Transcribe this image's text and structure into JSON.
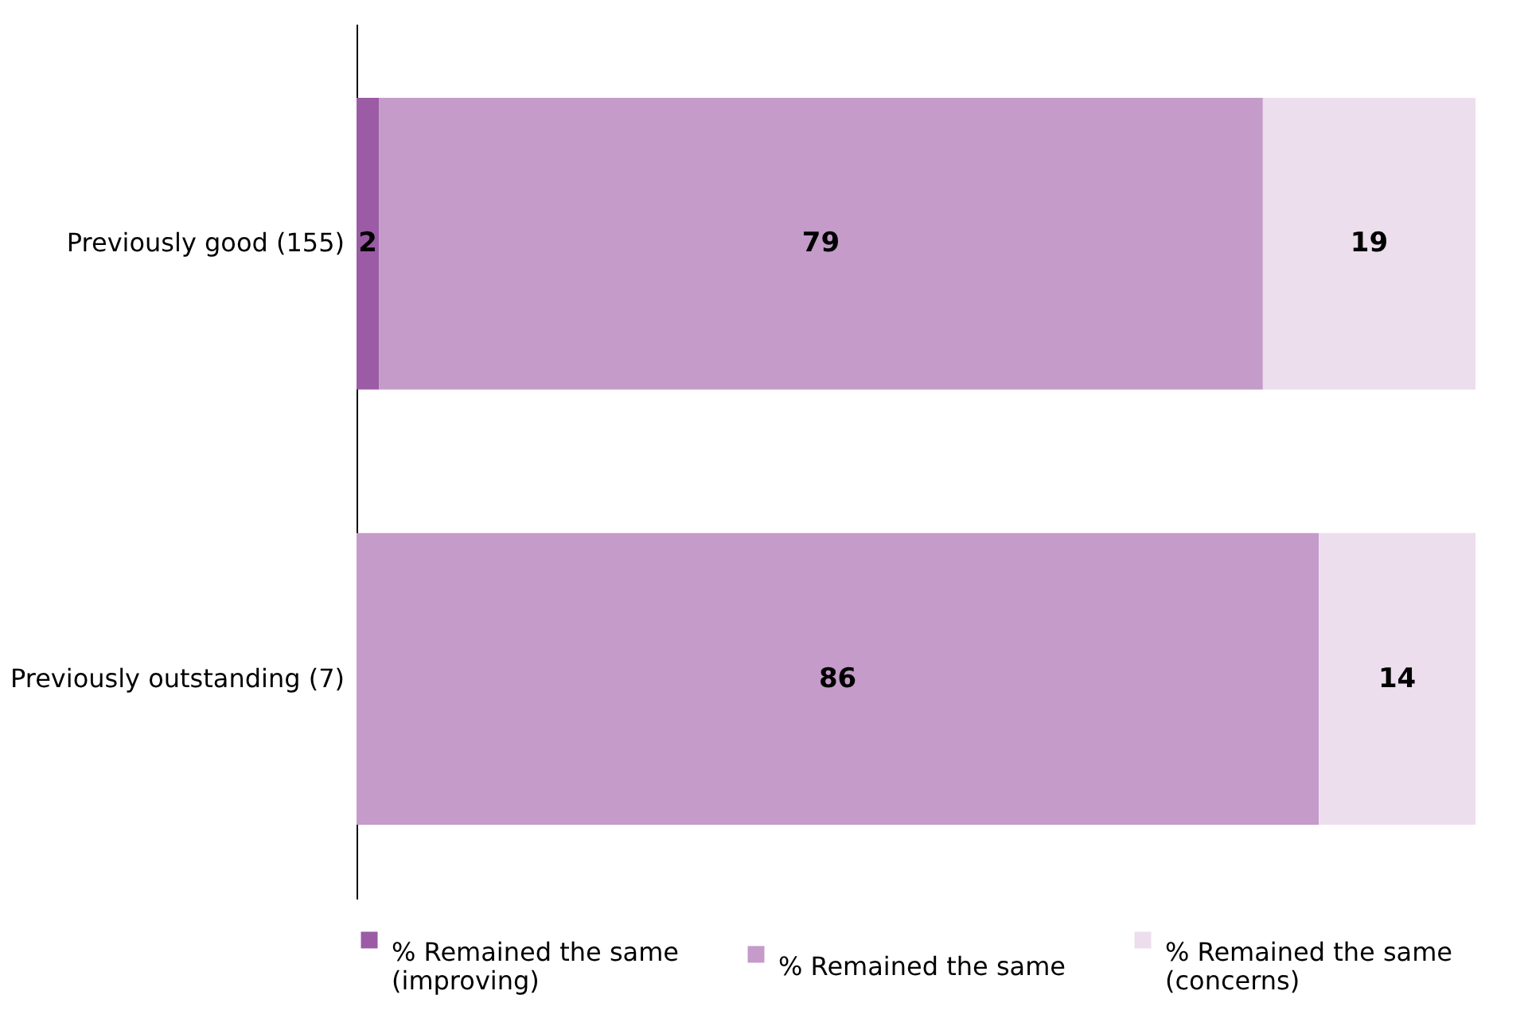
{
  "chart_data": {
    "type": "bar",
    "orientation": "horizontal",
    "stacked": true,
    "data_labels": true,
    "legend": "bottom",
    "xlim": [
      0,
      100
    ],
    "categories": [
      "Previously good (155)",
      "Previously outstanding (7)"
    ],
    "series": [
      {
        "name": "% Remained the same (improving)",
        "color": "#9b5ba5",
        "values": [
          2,
          null
        ]
      },
      {
        "name": "% Remained the same",
        "color": "#c49bc9",
        "values": [
          79,
          86
        ]
      },
      {
        "name": "% Remained the same (concerns)",
        "color": "#ecdeed",
        "values": [
          19,
          14
        ]
      }
    ]
  }
}
